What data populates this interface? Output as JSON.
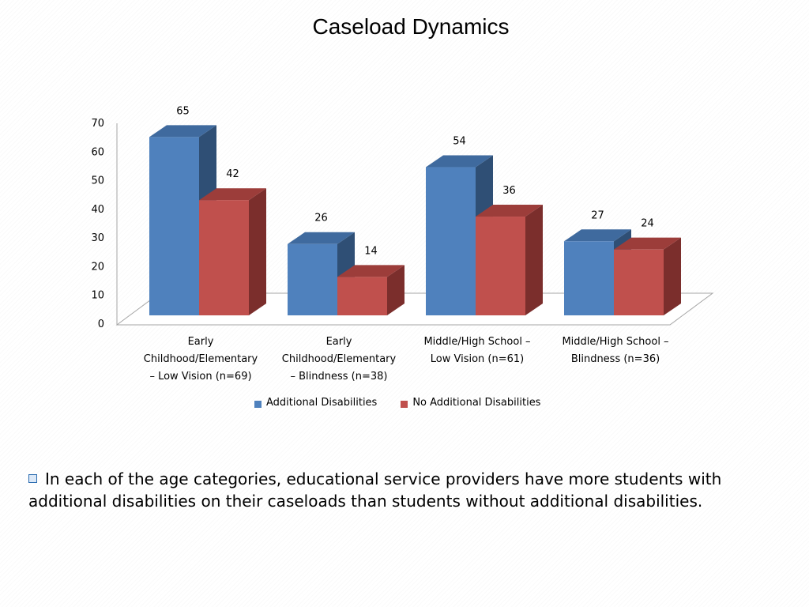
{
  "slide": {
    "title": "Caseload Dynamics",
    "bullet_text": "In each of the age categories, educational service providers have more students with additional disabilities on their caseloads than students without additional disabilities."
  },
  "chart_data": {
    "type": "bar",
    "style": "3d-clustered-column",
    "title": "",
    "xlabel": "",
    "ylabel": "",
    "ylim": [
      0,
      70
    ],
    "yticks": [
      0,
      10,
      20,
      30,
      40,
      50,
      60,
      70
    ],
    "grid": false,
    "legend_position": "bottom",
    "categories": [
      "Early Childhood/Elementary – Low Vision (n=69)",
      "Early Childhood/Elementary – Blindness (n=38)",
      "Middle/High School – Low Vision (n=61)",
      "Middle/High School – Blindness (n=36)"
    ],
    "category_lines": [
      [
        "Early",
        "Childhood/Elementary",
        "– Low Vision (n=69)"
      ],
      [
        "Early",
        "Childhood/Elementary",
        "– Blindness (n=38)"
      ],
      [
        "Middle/High School –",
        "Low Vision (n=61)"
      ],
      [
        "Middle/High School –",
        "Blindness (n=36)"
      ]
    ],
    "series": [
      {
        "name": "Additional Disabilities",
        "values": [
          65,
          26,
          54,
          27
        ],
        "color": "#4f81bd",
        "side_color": "#2f4f75",
        "top_color": "#3f6a9e"
      },
      {
        "name": "No Additional Disabilities",
        "values": [
          42,
          14,
          36,
          24
        ],
        "color": "#c0504d",
        "side_color": "#7b2e2c",
        "top_color": "#9c3d3a"
      }
    ]
  }
}
